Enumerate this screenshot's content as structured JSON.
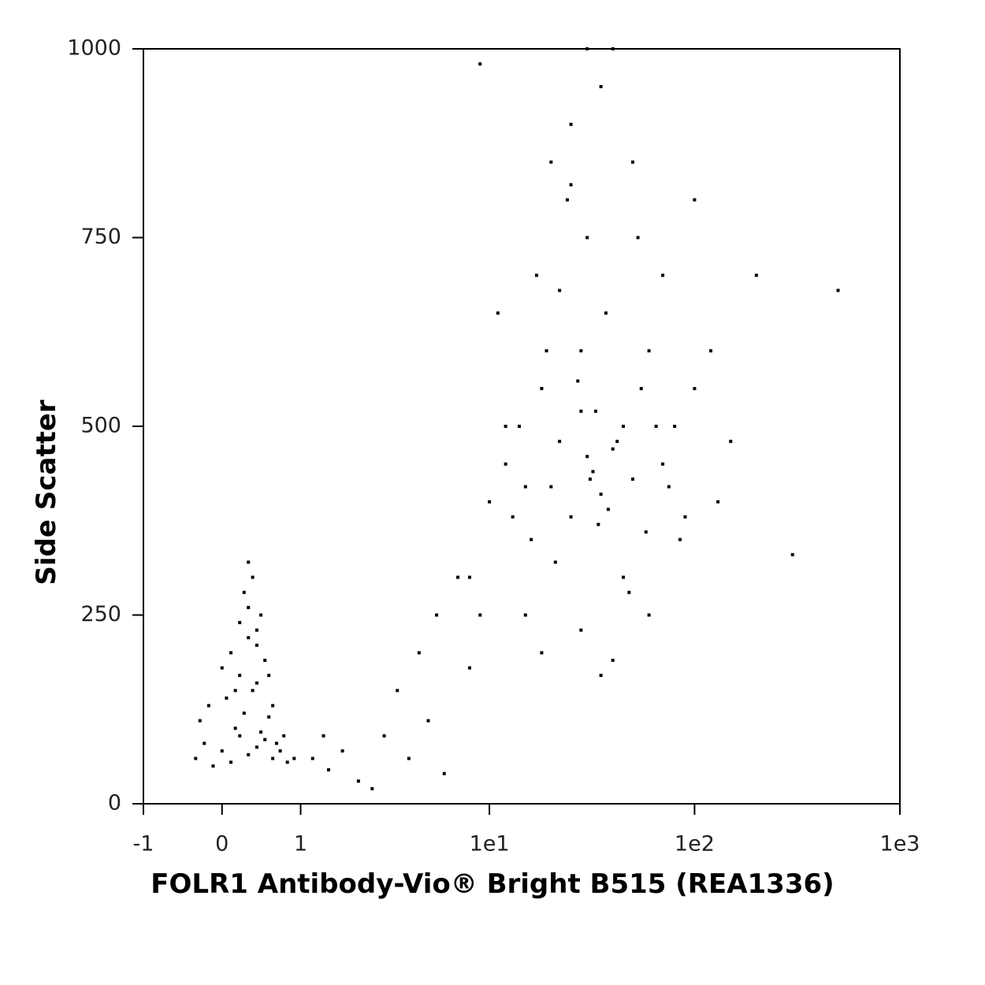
{
  "chart_data": {
    "type": "scatter",
    "x_label": "FOLR1 Antibody-Vio® Bright B515 (REA1336)",
    "y_label": "Side Scatter",
    "color": "#000000",
    "x": [
      -0.3,
      -0.2,
      -0.1,
      0,
      0.1,
      0.2,
      0.3,
      0.4,
      0.5,
      0.6,
      0.7,
      0.8,
      -0.25,
      -0.15,
      0.05,
      0.15,
      0.25,
      0.35,
      0.45,
      0.55,
      0.65,
      0.75,
      0,
      0.1,
      0.2,
      0.3,
      0.4,
      0.5,
      0.2,
      0.3,
      0.4,
      0.25,
      0.35,
      0.45,
      0.3,
      0.4,
      0.15,
      0.55,
      0.6,
      0.9,
      1.2,
      1.5,
      1.8,
      2.2,
      2.6,
      3,
      3.5,
      4,
      4.5,
      5,
      5.5,
      6,
      7,
      8,
      1.4,
      10,
      12,
      14,
      16,
      18,
      20,
      22,
      25,
      28,
      30,
      32,
      35,
      38,
      40,
      45,
      50,
      55,
      60,
      70,
      80,
      90,
      100,
      120,
      150,
      200,
      8,
      9,
      11,
      13,
      15,
      17,
      19,
      21,
      24,
      27,
      31,
      34,
      37,
      42,
      48,
      53,
      58,
      65,
      75,
      85,
      20,
      25,
      30,
      35,
      40,
      30,
      25,
      22,
      28,
      33,
      15,
      18,
      45,
      60,
      12,
      50,
      70,
      100,
      9,
      130,
      300,
      500,
      35,
      28,
      40
    ],
    "y": [
      60,
      80,
      50,
      70,
      55,
      90,
      65,
      75,
      85,
      60,
      70,
      55,
      110,
      130,
      140,
      100,
      120,
      150,
      95,
      115,
      80,
      90,
      180,
      200,
      170,
      220,
      160,
      190,
      240,
      260,
      230,
      280,
      300,
      250,
      320,
      210,
      150,
      170,
      130,
      60,
      60,
      45,
      70,
      30,
      20,
      90,
      150,
      60,
      200,
      110,
      250,
      40,
      300,
      180,
      90,
      400,
      450,
      500,
      350,
      550,
      420,
      480,
      380,
      520,
      460,
      440,
      410,
      390,
      470,
      500,
      430,
      550,
      600,
      450,
      500,
      380,
      550,
      600,
      480,
      700,
      300,
      250,
      650,
      380,
      420,
      700,
      600,
      320,
      800,
      560,
      430,
      370,
      650,
      480,
      280,
      750,
      360,
      500,
      420,
      350,
      850,
      900,
      750,
      950,
      1000,
      1000,
      820,
      680,
      600,
      520,
      250,
      200,
      300,
      250,
      500,
      850,
      700,
      800,
      980,
      400,
      330,
      680,
      170,
      230,
      190
    ],
    "xlim": [
      -1,
      1000
    ],
    "ylim": [
      0,
      1000
    ],
    "xticks": [
      -1,
      0,
      1,
      {
        "value": 10,
        "label": "1e1"
      },
      {
        "value": 100,
        "label": "1e2"
      },
      {
        "value": 1000,
        "label": "1e3"
      }
    ],
    "yticks": [
      0,
      250,
      500,
      750,
      1000
    ],
    "x_scale": "biexponential"
  }
}
